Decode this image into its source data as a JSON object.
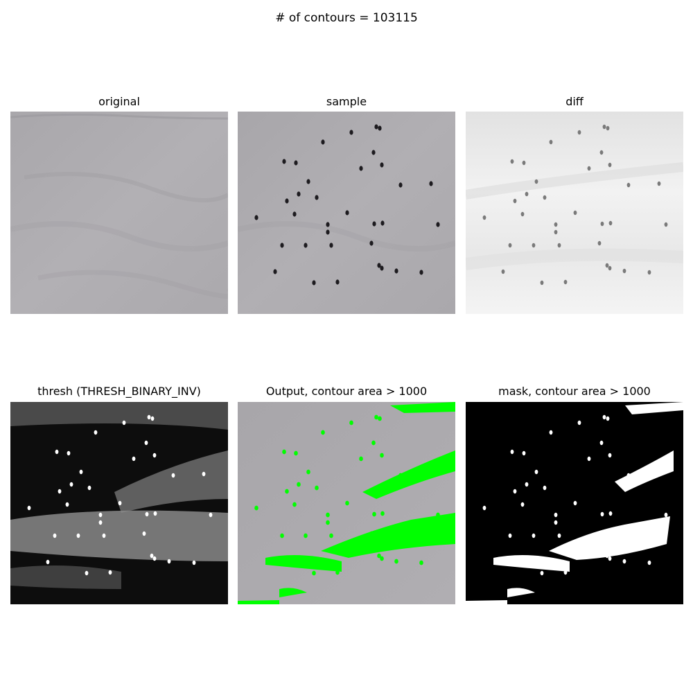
{
  "figure": {
    "suptitle": "# of contours = 103115"
  },
  "panels": [
    {
      "title": "original"
    },
    {
      "title": "sample"
    },
    {
      "title": "diff"
    },
    {
      "title": "thresh (THRESH_BINARY_INV)"
    },
    {
      "title": "Output, contour area > 1000"
    },
    {
      "title": "mask, contour area > 1000"
    }
  ],
  "colors": {
    "fabric": "#aeacb0",
    "fabric_dark": "#9d9ba0",
    "seed": "#1d1b1f",
    "diff_bg": "#f0f0f0",
    "diff_seed": "#7a7a7a",
    "highlight": "#00ff00",
    "mask_bg": "#000000",
    "mask_fg": "#ffffff"
  }
}
